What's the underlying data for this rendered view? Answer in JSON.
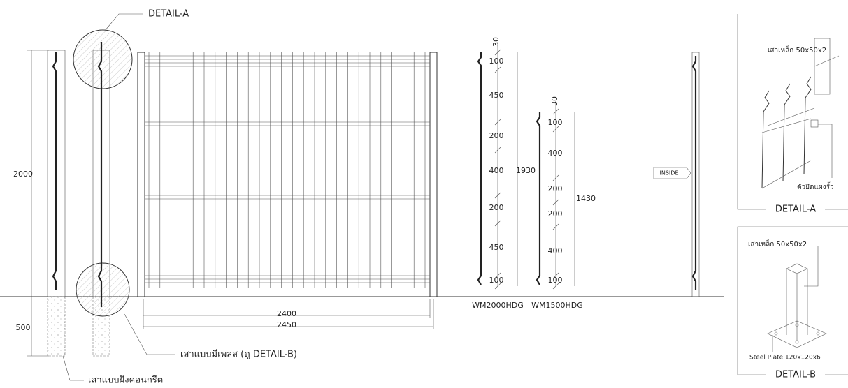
{
  "callouts": {
    "detail_a": "DETAIL-A",
    "plate_post": "เสาแบบมีเพลส (ดู DETAIL-B)",
    "embedded_post": "เสาแบบฝังคอนกรีต"
  },
  "fence": {
    "height": "2000",
    "embed": "500",
    "panel_width": "2400",
    "post_spacing": "2450"
  },
  "profiles": [
    {
      "model": "WM2000HDG",
      "total": "1930",
      "segments": [
        "30",
        "100",
        "450",
        "200",
        "400",
        "200",
        "450",
        "100"
      ]
    },
    {
      "model": "WM1500HDG",
      "total": "1430",
      "segments": [
        "30",
        "100",
        "400",
        "200",
        "200",
        "400",
        "100"
      ]
    }
  ],
  "inside": "INSIDE",
  "details": [
    {
      "title": "DETAIL-A",
      "labels": [
        "เสาเหล็ก 50x50x2",
        "ตัวยึดแผงรั้ว"
      ]
    },
    {
      "title": "DETAIL-B",
      "labels": [
        "เสาเหล็ก 50x50x2",
        "Steel Plate 120x120x6"
      ]
    }
  ]
}
